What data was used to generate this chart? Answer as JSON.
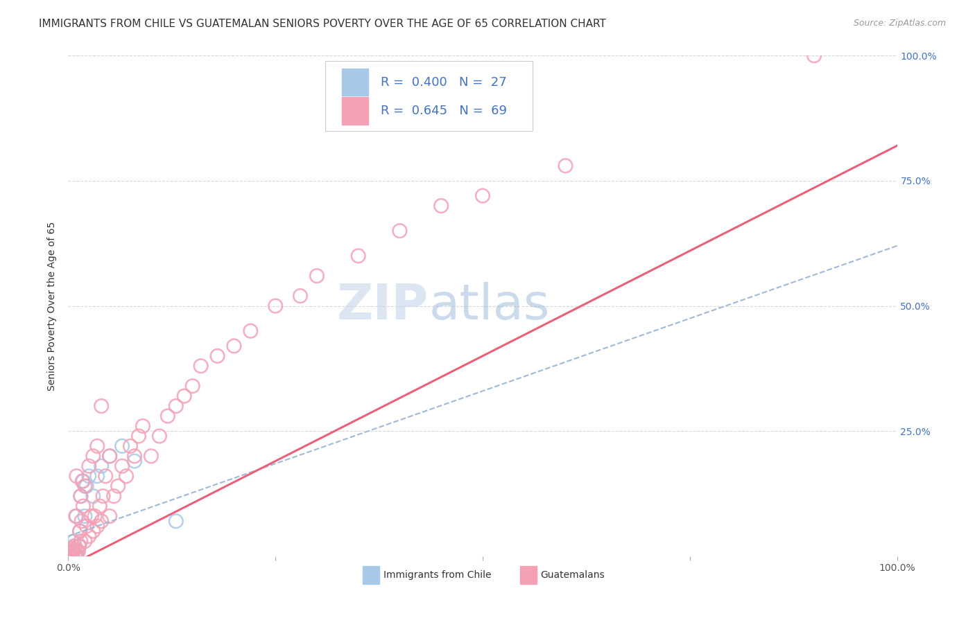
{
  "title": "IMMIGRANTS FROM CHILE VS GUATEMALAN SENIORS POVERTY OVER THE AGE OF 65 CORRELATION CHART",
  "source": "Source: ZipAtlas.com",
  "ylabel": "Seniors Poverty Over the Age of 65",
  "xlim": [
    0,
    1.0
  ],
  "ylim": [
    0,
    1.0
  ],
  "xtick_vals": [
    0.0,
    0.25,
    0.5,
    0.75,
    1.0
  ],
  "xtick_labels": [
    "0.0%",
    "",
    "",
    "",
    "100.0%"
  ],
  "ytick_vals": [
    0.0,
    0.25,
    0.5,
    0.75,
    1.0
  ],
  "ytick_labels": [
    "",
    "25.0%",
    "50.0%",
    "75.0%",
    "100.0%"
  ],
  "chile_R": 0.4,
  "chile_N": 27,
  "guatemalan_R": 0.645,
  "guatemalan_N": 69,
  "chile_color": "#a8c8e8",
  "guatemalan_color": "#f4a0b5",
  "chile_line_color": "#a0b8d8",
  "guatemalan_line_color": "#e8607a",
  "legend_text_color": "#4472c4",
  "watermark_color": "#c8d8f0",
  "title_fontsize": 11,
  "label_fontsize": 10,
  "tick_fontsize": 10,
  "legend_fontsize": 13,
  "source_fontsize": 9,
  "background_color": "#ffffff",
  "grid_color": "#d8d8d8",
  "chile_scatter_x": [
    0.0,
    0.0,
    0.0,
    0.003,
    0.004,
    0.005,
    0.006,
    0.007,
    0.008,
    0.009,
    0.01,
    0.01,
    0.012,
    0.013,
    0.014,
    0.015,
    0.018,
    0.02,
    0.022,
    0.025,
    0.03,
    0.035,
    0.04,
    0.05,
    0.065,
    0.08,
    0.13
  ],
  "chile_scatter_y": [
    0.0,
    0.005,
    0.01,
    0.0,
    0.005,
    0.01,
    0.02,
    0.03,
    0.0,
    0.005,
    0.0,
    0.08,
    0.01,
    0.02,
    0.05,
    0.12,
    0.15,
    0.08,
    0.14,
    0.16,
    0.12,
    0.16,
    0.18,
    0.2,
    0.22,
    0.19,
    0.07
  ],
  "guatemalan_scatter_x": [
    0.0,
    0.0,
    0.0,
    0.001,
    0.002,
    0.003,
    0.004,
    0.005,
    0.006,
    0.007,
    0.008,
    0.009,
    0.009,
    0.01,
    0.01,
    0.01,
    0.012,
    0.013,
    0.014,
    0.015,
    0.015,
    0.016,
    0.017,
    0.018,
    0.02,
    0.02,
    0.022,
    0.025,
    0.025,
    0.028,
    0.03,
    0.03,
    0.032,
    0.035,
    0.035,
    0.038,
    0.04,
    0.04,
    0.042,
    0.045,
    0.05,
    0.05,
    0.055,
    0.06,
    0.065,
    0.07,
    0.075,
    0.08,
    0.085,
    0.09,
    0.1,
    0.11,
    0.12,
    0.13,
    0.14,
    0.15,
    0.16,
    0.18,
    0.2,
    0.22,
    0.25,
    0.28,
    0.3,
    0.35,
    0.4,
    0.45,
    0.5,
    0.6,
    0.9
  ],
  "guatemalan_scatter_y": [
    0.0,
    0.005,
    0.01,
    0.0,
    0.005,
    0.01,
    0.015,
    0.0,
    0.01,
    0.015,
    0.02,
    0.0,
    0.08,
    0.0,
    0.01,
    0.16,
    0.01,
    0.02,
    0.05,
    0.03,
    0.12,
    0.07,
    0.15,
    0.1,
    0.03,
    0.14,
    0.06,
    0.04,
    0.18,
    0.08,
    0.05,
    0.2,
    0.08,
    0.06,
    0.22,
    0.1,
    0.07,
    0.3,
    0.12,
    0.16,
    0.08,
    0.2,
    0.12,
    0.14,
    0.18,
    0.16,
    0.22,
    0.2,
    0.24,
    0.26,
    0.2,
    0.24,
    0.28,
    0.3,
    0.32,
    0.34,
    0.38,
    0.4,
    0.42,
    0.45,
    0.5,
    0.52,
    0.56,
    0.6,
    0.65,
    0.7,
    0.72,
    0.78,
    1.0
  ],
  "chile_line_x": [
    0.0,
    1.0
  ],
  "chile_line_y": [
    0.04,
    0.62
  ],
  "guat_line_x": [
    0.0,
    1.0
  ],
  "guat_line_y": [
    -0.02,
    0.82
  ]
}
